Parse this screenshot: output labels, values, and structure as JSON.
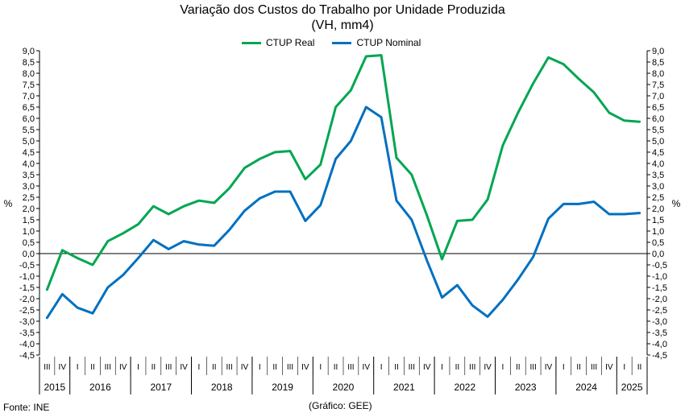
{
  "chart_data": {
    "type": "line",
    "title": "Variação dos Custos do Trabalho por Unidade Produzida",
    "subtitle": "(VH, mm4)",
    "ylabel_left": "%",
    "ylabel_right": "%",
    "ylim": [
      -4.5,
      9.0
    ],
    "ytick_step": 0.5,
    "grid": false,
    "legend_position": "top-center",
    "quarter_labels": [
      "III",
      "IV",
      "I",
      "II",
      "III",
      "IV",
      "I",
      "II",
      "III",
      "IV",
      "I",
      "II",
      "III",
      "IV",
      "I",
      "II",
      "III",
      "IV",
      "I",
      "II",
      "III",
      "IV",
      "I",
      "II",
      "III",
      "IV",
      "I",
      "II",
      "III",
      "IV",
      "I",
      "II",
      "III",
      "IV",
      "I",
      "II",
      "III",
      "IV",
      "I",
      "II"
    ],
    "years": [
      {
        "label": "2015",
        "quarters": 2
      },
      {
        "label": "2016",
        "quarters": 4
      },
      {
        "label": "2017",
        "quarters": 4
      },
      {
        "label": "2018",
        "quarters": 4
      },
      {
        "label": "2019",
        "quarters": 4
      },
      {
        "label": "2020",
        "quarters": 4
      },
      {
        "label": "2021",
        "quarters": 4
      },
      {
        "label": "2022",
        "quarters": 4
      },
      {
        "label": "2023",
        "quarters": 4
      },
      {
        "label": "2024",
        "quarters": 4
      },
      {
        "label": "2025",
        "quarters": 2
      }
    ],
    "series": [
      {
        "name": "CTUP Real",
        "color": "#00a651",
        "values": [
          -1.6,
          0.15,
          -0.2,
          -0.5,
          0.55,
          0.9,
          1.3,
          2.1,
          1.75,
          2.1,
          2.35,
          2.25,
          2.9,
          3.8,
          4.2,
          4.5,
          4.55,
          3.3,
          3.95,
          6.5,
          7.25,
          8.75,
          8.8,
          4.25,
          3.5,
          1.7,
          -0.25,
          1.45,
          1.5,
          2.4,
          4.8,
          6.25,
          7.55,
          8.7,
          8.4,
          7.75,
          7.15,
          6.25,
          5.9,
          5.85
        ]
      },
      {
        "name": "CTUP Nominal",
        "color": "#0070c0",
        "values": [
          -2.85,
          -1.8,
          -2.4,
          -2.65,
          -1.5,
          -0.95,
          -0.2,
          0.6,
          0.2,
          0.55,
          0.4,
          0.35,
          1.05,
          1.9,
          2.45,
          2.75,
          2.75,
          1.45,
          2.15,
          4.2,
          5.0,
          6.5,
          6.05,
          2.35,
          1.5,
          -0.3,
          -1.95,
          -1.4,
          -2.3,
          -2.8,
          -2.05,
          -1.15,
          -0.15,
          1.55,
          2.2,
          2.2,
          2.3,
          1.75,
          1.75,
          1.8
        ]
      }
    ]
  },
  "footer": {
    "source": "Fonte: INE",
    "credit": "(Gráfico: GEE)"
  }
}
